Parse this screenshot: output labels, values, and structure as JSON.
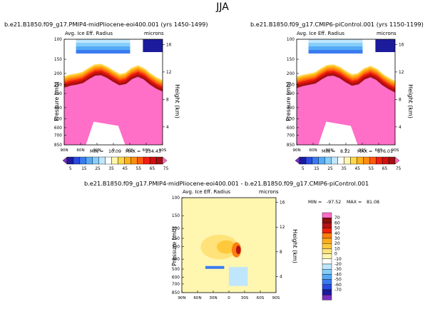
{
  "page_title": "JJA",
  "colors": {
    "top_scale": [
      "#7a2fc2",
      "#1b1b9c",
      "#2a4ae0",
      "#3a7cf0",
      "#55aaf6",
      "#86cdfa",
      "#bfe6fd",
      "#ffffff",
      "#fff6b0",
      "#ffd84d",
      "#ffb21a",
      "#ff8c0f",
      "#ff5a0f",
      "#f0200c",
      "#cf1010",
      "#a21010",
      "#ff6ec7"
    ],
    "diff_scale": [
      "#7a2fc2",
      "#1b1b9c",
      "#2a4ae0",
      "#3a7cf0",
      "#55aaf6",
      "#86cdfa",
      "#bfe6fd",
      "#ffffff",
      "#fff6b0",
      "#ffe27a",
      "#ffc93c",
      "#ffac1c",
      "#ff7e10",
      "#f0200c",
      "#b51414",
      "#8b1010",
      "#ff6ec7"
    ]
  },
  "chart_data": [
    {
      "type": "heatmap",
      "title": "b.e21.B1850.f09_g17.PMIP4-midPliocene-eoi400.001 (yrs 1450-1499)",
      "subtitle_left": "Avg. Ice Eff. Radius",
      "subtitle_right": "microns",
      "xlabel": "",
      "ylabel": "Pressure (mb)",
      "right_ylabel": "Height (km)",
      "x_ticks": [
        "90N",
        "60N",
        "30N",
        "0",
        "30S",
        "60S",
        "90S"
      ],
      "y_ticks": [
        "100",
        "150",
        "200",
        "250",
        "300",
        "400",
        "500",
        "600",
        "700",
        "850"
      ],
      "right_ticks": [
        "16",
        "12",
        "8",
        "4"
      ],
      "stats": {
        "min_label": "MIN =",
        "min": "10.09",
        "max_label": "MAX =",
        "max": "234.43"
      },
      "tropopause_depth_mb": [
        250,
        240,
        235,
        228,
        210,
        196,
        194,
        205,
        222,
        238,
        232,
        210,
        200,
        212,
        235,
        255,
        270
      ]
    },
    {
      "type": "heatmap",
      "title": "b.e21.B1850.f09_g17.CMIP6-piControl.001 (yrs 1150-1199)",
      "subtitle_left": "Avg. Ice Eff. Radius",
      "subtitle_right": "microns",
      "xlabel": "",
      "ylabel": "Pressure (mb)",
      "right_ylabel": "Height (km)",
      "x_ticks": [
        "90N",
        "60N",
        "30N",
        "0",
        "30S",
        "60S",
        "90S"
      ],
      "y_ticks": [
        "100",
        "150",
        "200",
        "250",
        "300",
        "400",
        "500",
        "600",
        "700",
        "850"
      ],
      "right_ticks": [
        "16",
        "12",
        "8",
        "4"
      ],
      "stats": {
        "min_label": "MIN =",
        "min": "8.22",
        "max_label": "MAX =",
        "max": "876.01"
      },
      "tropopause_depth_mb": [
        252,
        242,
        236,
        230,
        212,
        198,
        196,
        206,
        224,
        240,
        234,
        212,
        202,
        214,
        238,
        258,
        275
      ]
    },
    {
      "type": "heatmap",
      "title": "b.e21.B1850.f09_g17.PMIP4-midPliocene-eoi400.001 - b.e21.B1850.f09_g17.CMIP6-piControl.001",
      "subtitle_left": "Avg. Ice Eff. Radius",
      "subtitle_right": "microns",
      "xlabel": "",
      "ylabel": "Pressure (mb)",
      "right_ylabel": "Height (km)",
      "x_ticks": [
        "90N",
        "60N",
        "30N",
        "0",
        "30S",
        "60S",
        "90S"
      ],
      "y_ticks": [
        "100",
        "150",
        "200",
        "250",
        "300",
        "400",
        "500",
        "600",
        "700",
        "850"
      ],
      "right_ticks": [
        "16",
        "12",
        "8",
        "4"
      ],
      "stats": {
        "min_label": "MIN =",
        "min": "-97.52",
        "max_label": "MAX =",
        "max": "81.08"
      },
      "colorbar_labels": [
        "70",
        "60",
        "50",
        "40",
        "30",
        "20",
        "10",
        "0",
        "-10",
        "-20",
        "-30",
        "-40",
        "-50",
        "-60",
        "-70"
      ]
    }
  ],
  "top_colorbar": {
    "labels": [
      "5",
      "15",
      "25",
      "35",
      "45",
      "55",
      "65",
      "75"
    ]
  }
}
